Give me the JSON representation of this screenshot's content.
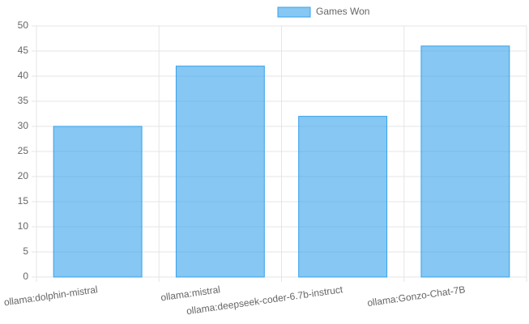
{
  "chart_data": {
    "type": "bar",
    "categories": [
      "ollama:dolphin-mistral",
      "ollama:mistral",
      "ollama:deepseek-coder-6.7b-instruct",
      "ollama:Gonzo-Chat-7B"
    ],
    "series": [
      {
        "name": "Games Won",
        "color": "#36a2eb",
        "values": [
          30,
          42,
          32,
          46
        ]
      }
    ],
    "ylim": [
      0,
      50
    ],
    "yticks": [
      0,
      5,
      10,
      15,
      20,
      25,
      30,
      35,
      40,
      45,
      50
    ],
    "grid": true,
    "legend": "top"
  }
}
